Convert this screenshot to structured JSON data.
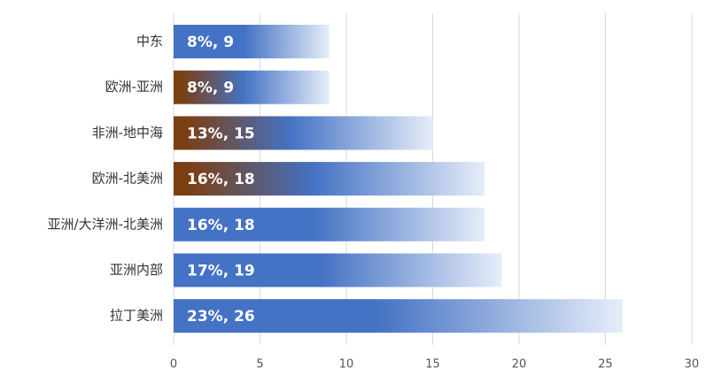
{
  "chart_data": {
    "type": "bar",
    "orientation": "horizontal",
    "categories": [
      "中东",
      "欧洲-亚洲",
      "非洲-地中海",
      "欧洲-北美洲",
      "亚洲/大洋洲-北美洲",
      "亚洲内部",
      "拉丁美洲"
    ],
    "values": [
      9,
      9,
      15,
      18,
      18,
      19,
      26
    ],
    "data_labels": [
      "8%, 9",
      "8%, 9",
      "13%, 15",
      "16%, 18",
      "16%, 18",
      "17%, 19",
      "23%, 26"
    ],
    "highlighted": [
      false,
      true,
      true,
      true,
      false,
      false,
      false
    ],
    "xlim": [
      0,
      30
    ],
    "x_ticks": [
      0,
      5,
      10,
      15,
      20,
      25,
      30
    ],
    "grid": true,
    "colors": {
      "bar": "#4472c4",
      "highlight": "#7b3f14",
      "fade": "#e6edf9",
      "grid": "#d9d9d9"
    }
  }
}
